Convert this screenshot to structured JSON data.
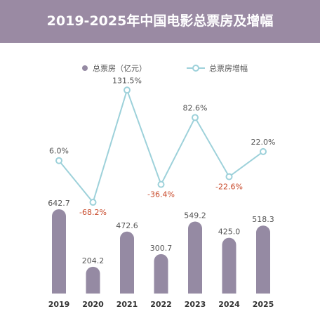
{
  "header": {
    "title": "2019-2025年中国电影总票房及增幅"
  },
  "colors": {
    "header_bg": "#9a8aa3",
    "bar": "#958aa3",
    "line": "#9dd1da",
    "positive_label": "#555555",
    "negative_label": "#c8492a",
    "axis_label": "#333333"
  },
  "legend": {
    "position": "top-center",
    "bar_label": "总票房（亿元）",
    "line_label": "总票房增幅"
  },
  "chart_data": {
    "type": "bar",
    "categories": [
      "2019",
      "2020",
      "2021",
      "2022",
      "2023",
      "2024",
      "2025"
    ],
    "series": [
      {
        "name": "总票房（亿元）",
        "type": "bar",
        "values": [
          642.7,
          204.2,
          472.6,
          300.7,
          549.2,
          425.0,
          518.3
        ],
        "labels": [
          "642.7",
          "204.2",
          "472.6",
          "300.7",
          "549.2",
          "425.0",
          "518.3"
        ]
      },
      {
        "name": "总票房增幅",
        "type": "line",
        "values": [
          6.0,
          -68.2,
          131.5,
          -36.4,
          82.6,
          -22.6,
          22.0
        ],
        "labels": [
          "6.0%",
          "-68.2%",
          "131.5%",
          "-36.4%",
          "82.6%",
          "-22.6%",
          "22.0%"
        ]
      }
    ],
    "title": "2019-2025年中国电影总票房及增幅",
    "grid": false
  }
}
